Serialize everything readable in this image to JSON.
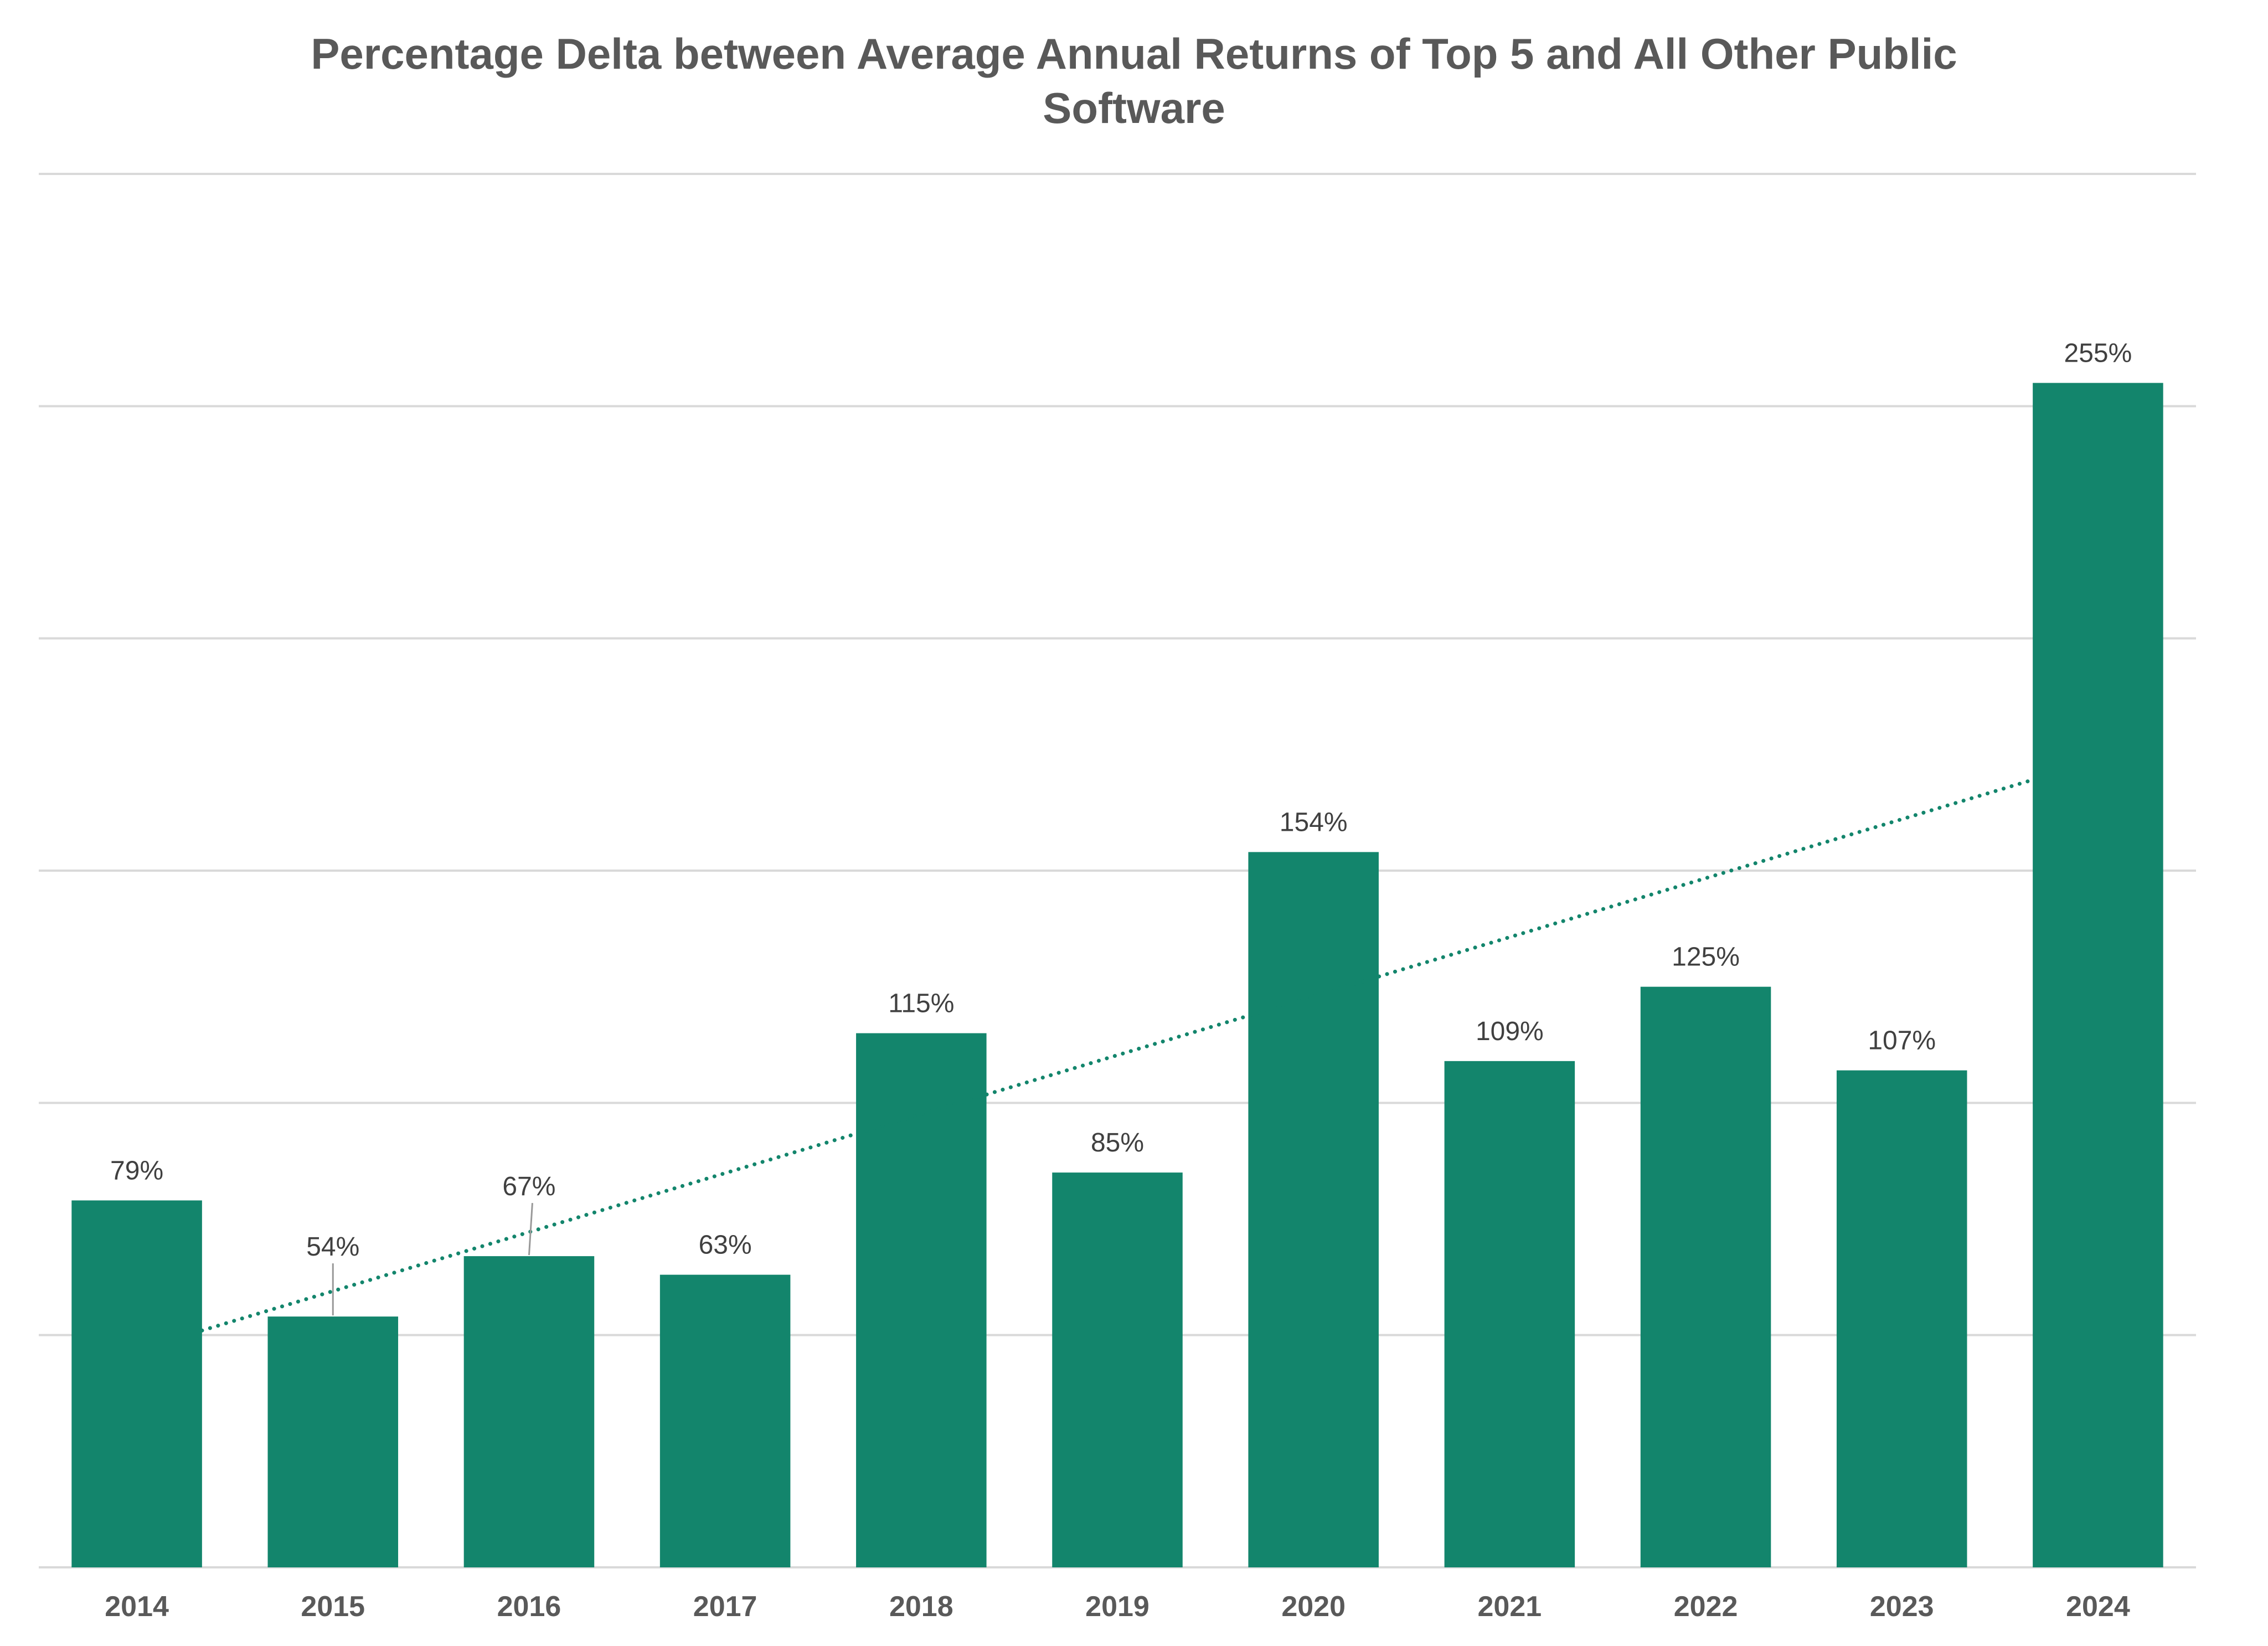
{
  "chart_data": {
    "type": "bar",
    "title_lines": [
      "Percentage Delta between Average Annual Returns of Top 5 and All Other Public",
      "Software"
    ],
    "title": "Percentage Delta between Average Annual Returns of Top 5 and All Other Public Software",
    "xlabel": "",
    "ylabel": "",
    "categories": [
      "2014",
      "2015",
      "2016",
      "2017",
      "2018",
      "2019",
      "2020",
      "2021",
      "2022",
      "2023",
      "2024"
    ],
    "values": [
      79,
      54,
      67,
      63,
      115,
      85,
      154,
      109,
      125,
      107,
      255
    ],
    "data_labels": [
      "79%",
      "54%",
      "67%",
      "63%",
      "115%",
      "85%",
      "154%",
      "109%",
      "125%",
      "107%",
      "255%"
    ],
    "ylim": [
      0,
      300
    ],
    "gridline_step": 50,
    "grid": true,
    "y_tick_labels_shown": false,
    "legend": "none",
    "trendline": {
      "type": "linear",
      "style": "dotted",
      "from_category": "2014",
      "to_category": "2024"
    },
    "colors": {
      "bar": "#13856C",
      "trendline": "#13856C",
      "gridline": "#D9D9D9",
      "title": "#595959",
      "tick_label": "#595959",
      "data_label": "#404040"
    }
  }
}
